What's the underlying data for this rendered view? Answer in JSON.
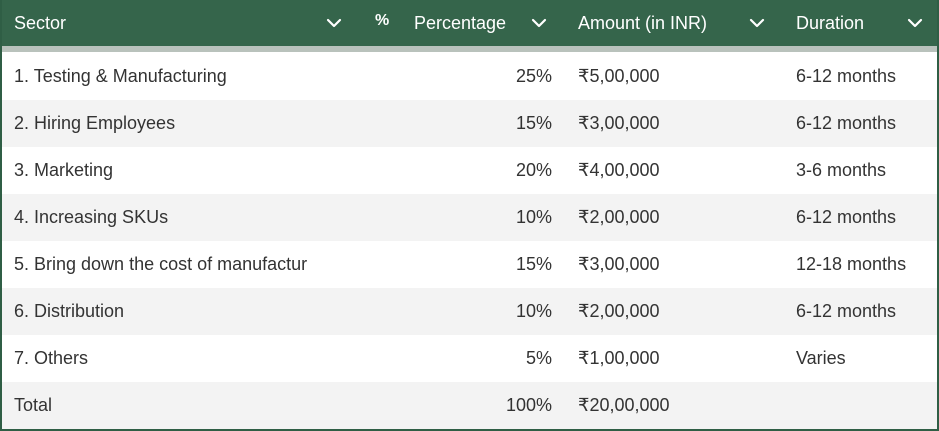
{
  "header": {
    "sector": "Sector",
    "percentage_icon": "%",
    "percentage": "Percentage",
    "amount": "Amount (in INR)",
    "duration": "Duration"
  },
  "icons": {
    "sort": "chevron-down-icon",
    "percent": "percent-icon"
  },
  "colors": {
    "header_bg": "#35654b",
    "header_text": "#ffffff",
    "row_alt_bg": "#f3f3f3",
    "text": "#333333"
  },
  "rows": [
    {
      "sector": "1. Testing & Manufacturing",
      "percentage": "25%",
      "amount": "₹5,00,000",
      "duration": "6-12 months"
    },
    {
      "sector": "2. Hiring Employees",
      "percentage": "15%",
      "amount": "₹3,00,000",
      "duration": "6-12 months"
    },
    {
      "sector": "3. Marketing",
      "percentage": "20%",
      "amount": "₹4,00,000",
      "duration": "3-6 months"
    },
    {
      "sector": "4. Increasing SKUs",
      "percentage": "10%",
      "amount": "₹2,00,000",
      "duration": "6-12 months"
    },
    {
      "sector": "5. Bring down the cost of manufactur",
      "percentage": "15%",
      "amount": "₹3,00,000",
      "duration": "12-18 months"
    },
    {
      "sector": "6. Distribution",
      "percentage": "10%",
      "amount": "₹2,00,000",
      "duration": "6-12 months"
    },
    {
      "sector": "7. Others",
      "percentage": "5%",
      "amount": "₹1,00,000",
      "duration": "Varies"
    },
    {
      "sector": "Total",
      "percentage": "100%",
      "amount": "₹20,00,000",
      "duration": ""
    }
  ]
}
